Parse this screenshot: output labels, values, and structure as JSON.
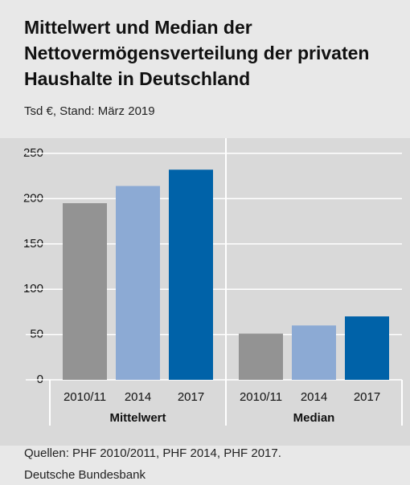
{
  "chart_data": {
    "type": "bar",
    "title": "Mittelwert und Median der Nettovermögensverteilung der privaten Haushalte in Deutschland",
    "subtitle": "Tsd €, Stand: März 2019",
    "categories": [
      "Mittelwert",
      "Median"
    ],
    "series": [
      {
        "name": "2010/11",
        "color": "#939393",
        "values": [
          195,
          51
        ]
      },
      {
        "name": "2014",
        "color": "#8caad4",
        "values": [
          214,
          60
        ]
      },
      {
        "name": "2017",
        "color": "#0062a8",
        "values": [
          232,
          70
        ]
      }
    ],
    "ylim": [
      0,
      250
    ],
    "yticks": [
      0,
      50,
      100,
      150,
      200,
      250
    ],
    "grid": true,
    "source": "Quellen: PHF 2010/2011, PHF 2014, PHF 2017.",
    "publisher": "Deutsche Bundesbank"
  }
}
